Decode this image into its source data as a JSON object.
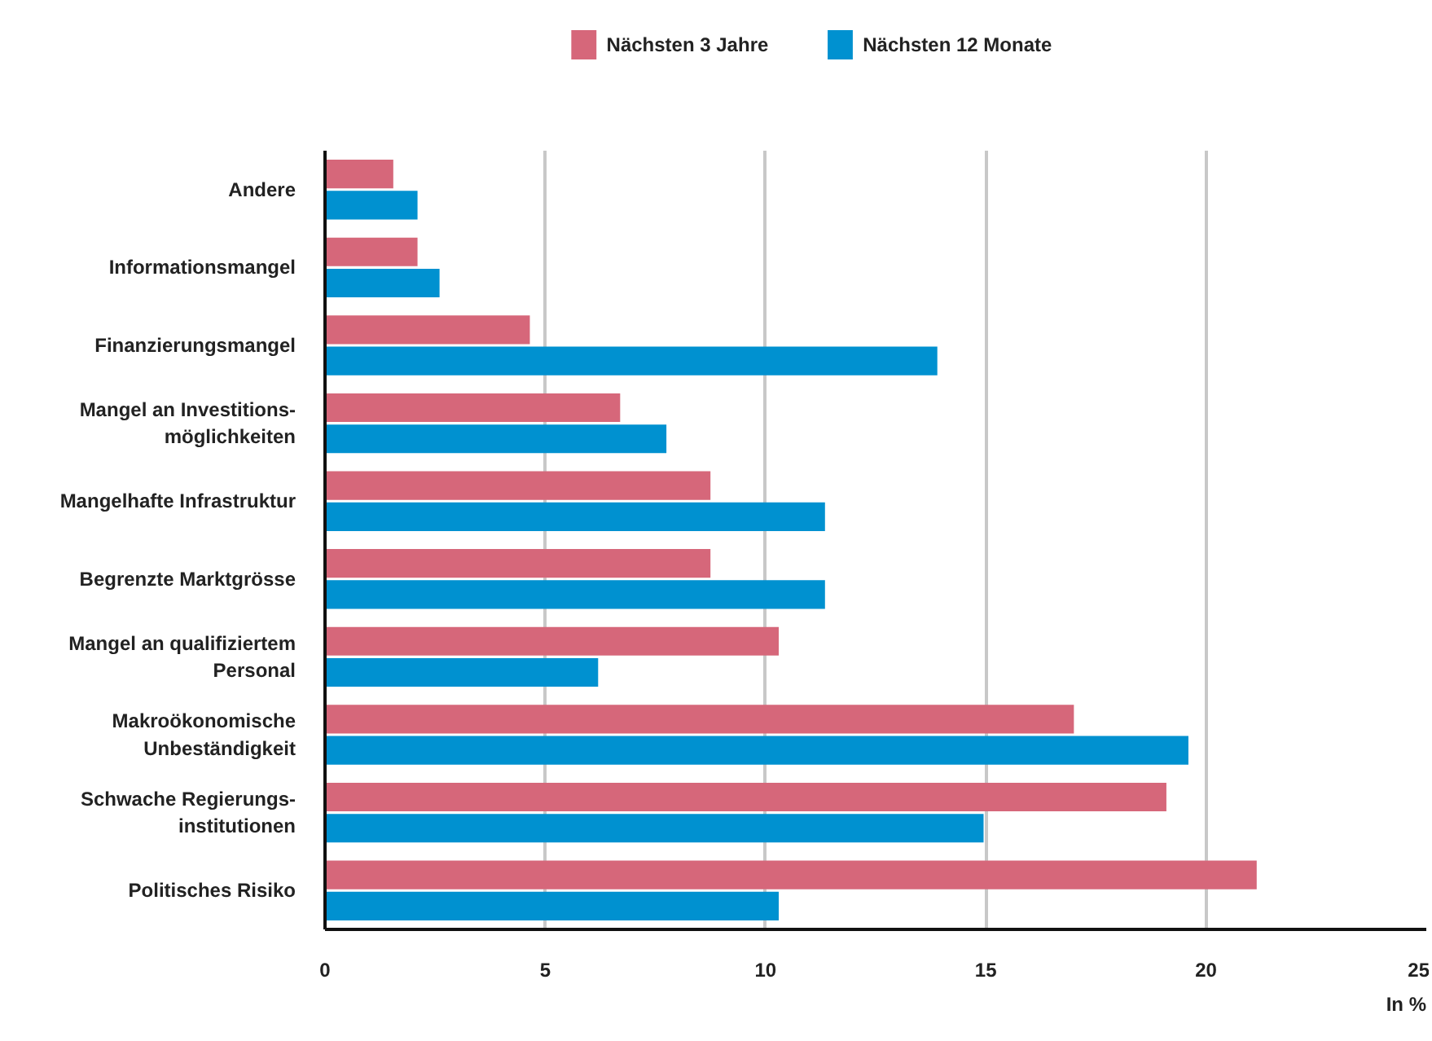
{
  "chart_data": {
    "type": "bar",
    "orientation": "horizontal",
    "xlabel": "In %",
    "categories": [
      "Andere",
      "Informationsmangel",
      "Finanzierungsmangel",
      "Mangel an Investitions-\nmöglichkeiten",
      "Mangelhafte Infrastruktur",
      "Begrenzte Marktgrösse",
      "Mangel an qualifiziertem\nPersonal",
      "Makroökonomische\nUnbeständigkeit",
      "Schwache Regierungs-\ninstitutionen",
      "Politisches Risiko"
    ],
    "series": [
      {
        "name": "Nächsten 3 Jahre",
        "color": "#d6677a",
        "values": [
          1.55,
          2.1,
          4.65,
          6.7,
          8.75,
          8.75,
          10.3,
          17.0,
          19.1,
          21.15
        ]
      },
      {
        "name": "Nächsten 12 Monate",
        "color": "#0091d0",
        "values": [
          2.1,
          2.6,
          13.9,
          7.75,
          11.35,
          11.35,
          6.2,
          19.6,
          14.95,
          10.3
        ]
      }
    ],
    "xlim": [
      0,
      25
    ],
    "xticks": [
      0,
      5,
      10,
      15,
      20,
      25
    ],
    "grid": "x",
    "legend": "top"
  }
}
